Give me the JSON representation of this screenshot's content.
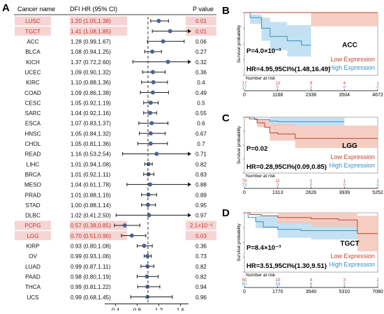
{
  "panel_labels": {
    "a": "A",
    "b": "B",
    "c": "C",
    "d": "D"
  },
  "forest": {
    "headers": {
      "cancer": "Cancer name",
      "hr": "DFI HR (95% CI)",
      "p": "P value"
    },
    "rows": [
      {
        "name": "LUSC",
        "hr": "1.20 (1.05,1.38)",
        "p": "0.01",
        "est": 1.2,
        "lo": 1.05,
        "hi": 1.38,
        "sig": true
      },
      {
        "name": "TGCT",
        "hr": "1.41 (1.08,1.85)",
        "p": "0.01",
        "est": 1.41,
        "lo": 1.08,
        "hi": 1.85,
        "sig": true
      },
      {
        "name": "ACC",
        "hr": "1.28 (0.99,1.67)",
        "p": "0.06",
        "est": 1.28,
        "lo": 0.99,
        "hi": 1.67,
        "sig": false
      },
      {
        "name": "BLCA",
        "hr": "1.08 (0.94,1.25)",
        "p": "0.27",
        "est": 1.08,
        "lo": 0.94,
        "hi": 1.25,
        "sig": false
      },
      {
        "name": "KICH",
        "hr": "1.37 (0.72,2.60)",
        "p": "0.32",
        "est": 1.37,
        "lo": 0.72,
        "hi": 2.6,
        "sig": false
      },
      {
        "name": "UCEC",
        "hr": "1.09 (0.90,1.32)",
        "p": "0.36",
        "est": 1.09,
        "lo": 0.9,
        "hi": 1.32,
        "sig": false
      },
      {
        "name": "KIRC",
        "hr": "1.10 (0.88,1.36)",
        "p": "0.4",
        "est": 1.1,
        "lo": 0.88,
        "hi": 1.36,
        "sig": false
      },
      {
        "name": "COAD",
        "hr": "1.09 (0.86,1.38)",
        "p": "0.49",
        "est": 1.09,
        "lo": 0.86,
        "hi": 1.38,
        "sig": false
      },
      {
        "name": "CESC",
        "hr": "1.05 (0.92,1.19)",
        "p": "0.5",
        "est": 1.05,
        "lo": 0.92,
        "hi": 1.19,
        "sig": false
      },
      {
        "name": "SARC",
        "hr": "1.04 (0.92,1.16)",
        "p": "0.55",
        "est": 1.04,
        "lo": 0.92,
        "hi": 1.16,
        "sig": false
      },
      {
        "name": "ESCA",
        "hr": "1.07 (0.83,1.37)",
        "p": "0.6",
        "est": 1.07,
        "lo": 0.83,
        "hi": 1.37,
        "sig": false
      },
      {
        "name": "HNSC",
        "hr": "1.05 (0.84,1.32)",
        "p": "0.67",
        "est": 1.05,
        "lo": 0.84,
        "hi": 1.32,
        "sig": false
      },
      {
        "name": "CHOL",
        "hr": "1.05 (0.81,1.36)",
        "p": "0.7",
        "est": 1.05,
        "lo": 0.81,
        "hi": 1.36,
        "sig": false
      },
      {
        "name": "READ",
        "hr": "1.16 (0.53,2.54)",
        "p": "0.71",
        "est": 1.16,
        "lo": 0.53,
        "hi": 2.54,
        "sig": false
      },
      {
        "name": "LIHC",
        "hr": "1.01 (0.94,1.08)",
        "p": "0.82",
        "est": 1.01,
        "lo": 0.94,
        "hi": 1.08,
        "sig": false
      },
      {
        "name": "BRCA",
        "hr": "1.01 (0.92,1.11)",
        "p": "0.83",
        "est": 1.01,
        "lo": 0.92,
        "hi": 1.11,
        "sig": false
      },
      {
        "name": "MESO",
        "hr": "1.04 (0.61,1.78)",
        "p": "0.88",
        "est": 1.04,
        "lo": 0.61,
        "hi": 1.78,
        "sig": false
      },
      {
        "name": "PRAD",
        "hr": "1.01 (0.88,1.16)",
        "p": "0.89",
        "est": 1.01,
        "lo": 0.88,
        "hi": 1.16,
        "sig": false
      },
      {
        "name": "STAD",
        "hr": "1.00 (0.88,1.14)",
        "p": "0.95",
        "est": 1.0,
        "lo": 0.88,
        "hi": 1.14,
        "sig": false
      },
      {
        "name": "DLBC",
        "hr": "1.02 (0.41,2.50)",
        "p": "0.97",
        "est": 1.02,
        "lo": 0.41,
        "hi": 2.5,
        "sig": false
      },
      {
        "name": "PCPG",
        "hr": "0.57 (0.38,0.85)",
        "p": "2.1×10⁻³",
        "est": 0.57,
        "lo": 0.38,
        "hi": 0.85,
        "sig": true
      },
      {
        "name": "LGG",
        "hr": "0.70 (0.51,0.96)",
        "p": "0.03",
        "est": 0.7,
        "lo": 0.51,
        "hi": 0.96,
        "sig": true
      },
      {
        "name": "KIRP",
        "hr": "0.93 (0.80,1.08)",
        "p": "0.36",
        "est": 0.93,
        "lo": 0.8,
        "hi": 1.08,
        "sig": false
      },
      {
        "name": "OV",
        "hr": "0.99 (0.93,1.06)",
        "p": "0.73",
        "est": 0.99,
        "lo": 0.93,
        "hi": 1.06,
        "sig": false
      },
      {
        "name": "LUAD",
        "hr": "0.99 (0.87,1.11)",
        "p": "0.82",
        "est": 0.99,
        "lo": 0.87,
        "hi": 1.11,
        "sig": false
      },
      {
        "name": "PAAD",
        "hr": "0.98 (0.80,1.19)",
        "p": "0.82",
        "est": 0.98,
        "lo": 0.8,
        "hi": 1.19,
        "sig": false
      },
      {
        "name": "THCA",
        "hr": "0.99 (0.81,1.22)",
        "p": "0.94",
        "est": 0.99,
        "lo": 0.81,
        "hi": 1.22,
        "sig": false
      },
      {
        "name": "UCS",
        "hr": "0.99 (0.68,1.45)",
        "p": "0.96",
        "est": 0.99,
        "lo": 0.68,
        "hi": 1.45,
        "sig": false
      }
    ],
    "axis": {
      "ticks": [
        0.4,
        0.8,
        1.2,
        1.6
      ],
      "xlim": [
        0.2,
        1.75
      ],
      "ref_line": 1
    },
    "colors": {
      "sig_text": "#c0392b",
      "sig_fill": "#f6d4d4",
      "point": "#4a6491",
      "line": "#1a1a1a"
    }
  },
  "km": [
    {
      "label": "ACC",
      "p_text": "P=4.0×10⁻³",
      "hr_text": "HR=4.95,95CI%(1.48,16.49)",
      "ylabel": "Survival probability",
      "xticks": [
        "0",
        "1168",
        "2336",
        "3504",
        "4672"
      ],
      "risk_title": "Number at risk",
      "risk_low": [
        "17",
        "13",
        "9",
        "4",
        "1"
      ],
      "risk_high": [
        "17",
        "5",
        "2",
        "0",
        "0"
      ],
      "xmax": 4672,
      "low": {
        "name": "Low Expression",
        "curve": [
          [
            0,
            1
          ],
          [
            4672,
            1
          ]
        ],
        "ci": [
          [
            0,
            1,
            1
          ],
          [
            2336,
            1,
            0.78
          ],
          [
            4672,
            1,
            0.78
          ]
        ]
      },
      "high": {
        "name": "High Expression",
        "curve": [
          [
            0,
            1
          ],
          [
            200,
            0.92
          ],
          [
            600,
            0.75
          ],
          [
            900,
            0.62
          ],
          [
            1500,
            0.55
          ],
          [
            2000,
            0.48
          ],
          [
            2336,
            0.48
          ]
        ],
        "ci": [
          [
            0,
            1,
            1
          ],
          [
            200,
            0.97,
            0.82
          ],
          [
            600,
            0.92,
            0.55
          ],
          [
            900,
            0.85,
            0.4
          ],
          [
            1500,
            0.8,
            0.3
          ],
          [
            2336,
            0.75,
            0.2
          ]
        ]
      }
    },
    {
      "label": "LGG",
      "p_text": "P=0.02",
      "hr_text": "HR=0.28,95CI%(0.09,0.85)",
      "ylabel": "Survival probability",
      "xticks": [
        "0",
        "1313",
        "2626",
        "3939",
        "5252"
      ],
      "risk_title": "Number at risk",
      "risk_low": [
        "74",
        "11",
        "1",
        "1",
        "1"
      ],
      "risk_high": [
        "73",
        "3",
        "0",
        "0",
        "0"
      ],
      "xmax": 5252,
      "low": {
        "name": "Low Expression",
        "curve": [
          [
            0,
            1
          ],
          [
            200,
            0.97
          ],
          [
            500,
            0.9
          ],
          [
            800,
            0.82
          ],
          [
            1000,
            0.72
          ],
          [
            1313,
            0.7
          ],
          [
            2000,
            0.62
          ],
          [
            2626,
            0.62
          ],
          [
            5252,
            0.62
          ]
        ],
        "ci": [
          [
            0,
            1,
            1
          ],
          [
            500,
            0.96,
            0.82
          ],
          [
            1000,
            0.88,
            0.58
          ],
          [
            2000,
            0.85,
            0.45
          ],
          [
            5252,
            0.85,
            0.45
          ]
        ]
      },
      "high": {
        "name": "High Expression",
        "curve": [
          [
            0,
            1
          ],
          [
            400,
            0.96
          ],
          [
            1000,
            0.93
          ],
          [
            1313,
            0.92
          ],
          [
            3939,
            0.92
          ]
        ],
        "ci": [
          [
            0,
            1,
            1
          ],
          [
            1000,
            0.99,
            0.85
          ],
          [
            3939,
            0.99,
            0.82
          ]
        ]
      }
    },
    {
      "label": "TGCT",
      "p_text": "P=8.4×10⁻³",
      "hr_text": "HR=3.51,95CI%(1.30,9.51)",
      "ylabel": "Survival probability",
      "xticks": [
        "0",
        "1770",
        "3540",
        "5310",
        "7080"
      ],
      "risk_title": "Number at risk",
      "risk_low": [
        "50",
        "19",
        "4",
        "3",
        "1"
      ],
      "risk_high": [
        "50",
        "18",
        "8",
        "2",
        "1"
      ],
      "xmax": 7080,
      "low": {
        "name": "Low Expression",
        "curve": [
          [
            0,
            1
          ],
          [
            300,
            0.97
          ],
          [
            900,
            0.95
          ],
          [
            1770,
            0.92
          ],
          [
            3540,
            0.9
          ],
          [
            5000,
            0.88
          ],
          [
            6000,
            0.65
          ],
          [
            7080,
            0.65
          ]
        ],
        "ci": [
          [
            0,
            1,
            1
          ],
          [
            1770,
            1,
            0.82
          ],
          [
            3540,
            1,
            0.76
          ],
          [
            6000,
            0.95,
            0.35
          ],
          [
            7080,
            0.95,
            0.3
          ]
        ]
      },
      "high": {
        "name": "High Expression",
        "curve": [
          [
            0,
            1
          ],
          [
            200,
            0.92
          ],
          [
            600,
            0.85
          ],
          [
            1000,
            0.76
          ],
          [
            1770,
            0.72
          ],
          [
            3000,
            0.7
          ],
          [
            3540,
            0.7
          ],
          [
            5310,
            0.7
          ],
          [
            6000,
            0.7
          ]
        ],
        "ci": [
          [
            0,
            1,
            1
          ],
          [
            600,
            0.95,
            0.74
          ],
          [
            1770,
            0.85,
            0.58
          ],
          [
            3540,
            0.85,
            0.55
          ],
          [
            6000,
            0.85,
            0.52
          ]
        ]
      }
    }
  ],
  "km_colors": {
    "low": "#c2452f",
    "high": "#3a8fc4",
    "low_ci": "#f3c4b8",
    "high_ci": "#b9dcf0"
  },
  "chart_data": [
    {
      "type": "scatter",
      "title": "",
      "xlabel": "",
      "ylabel": "",
      "categories": [
        "LUSC",
        "TGCT",
        "ACC",
        "BLCA",
        "KICH",
        "UCEC",
        "KIRC",
        "COAD",
        "CESC",
        "SARC",
        "ESCA",
        "HNSC",
        "CHOL",
        "READ",
        "LIHC",
        "BRCA",
        "MESO",
        "PRAD",
        "STAD",
        "DLBC",
        "PCPG",
        "LGG",
        "KIRP",
        "OV",
        "LUAD",
        "PAAD",
        "THCA",
        "UCS"
      ],
      "values": [
        1.2,
        1.41,
        1.28,
        1.08,
        1.37,
        1.09,
        1.1,
        1.09,
        1.05,
        1.04,
        1.07,
        1.05,
        1.05,
        1.16,
        1.01,
        1.01,
        1.04,
        1.01,
        1.0,
        1.02,
        0.57,
        0.7,
        0.93,
        0.99,
        0.99,
        0.98,
        0.99,
        0.99
      ],
      "xlim": [
        0.2,
        1.75
      ]
    },
    {
      "type": "line",
      "title": "ACC",
      "ylabel": "Survival probability",
      "x_range": [
        0,
        4672
      ],
      "series": [
        {
          "name": "Low Expression"
        },
        {
          "name": "High Expression"
        }
      ]
    },
    {
      "type": "line",
      "title": "LGG",
      "ylabel": "Survival probability",
      "x_range": [
        0,
        5252
      ],
      "series": [
        {
          "name": "Low Expression"
        },
        {
          "name": "High Expression"
        }
      ]
    },
    {
      "type": "line",
      "title": "TGCT",
      "ylabel": "Survival probability",
      "x_range": [
        0,
        7080
      ],
      "series": [
        {
          "name": "Low Expression"
        },
        {
          "name": "High Expression"
        }
      ]
    }
  ]
}
